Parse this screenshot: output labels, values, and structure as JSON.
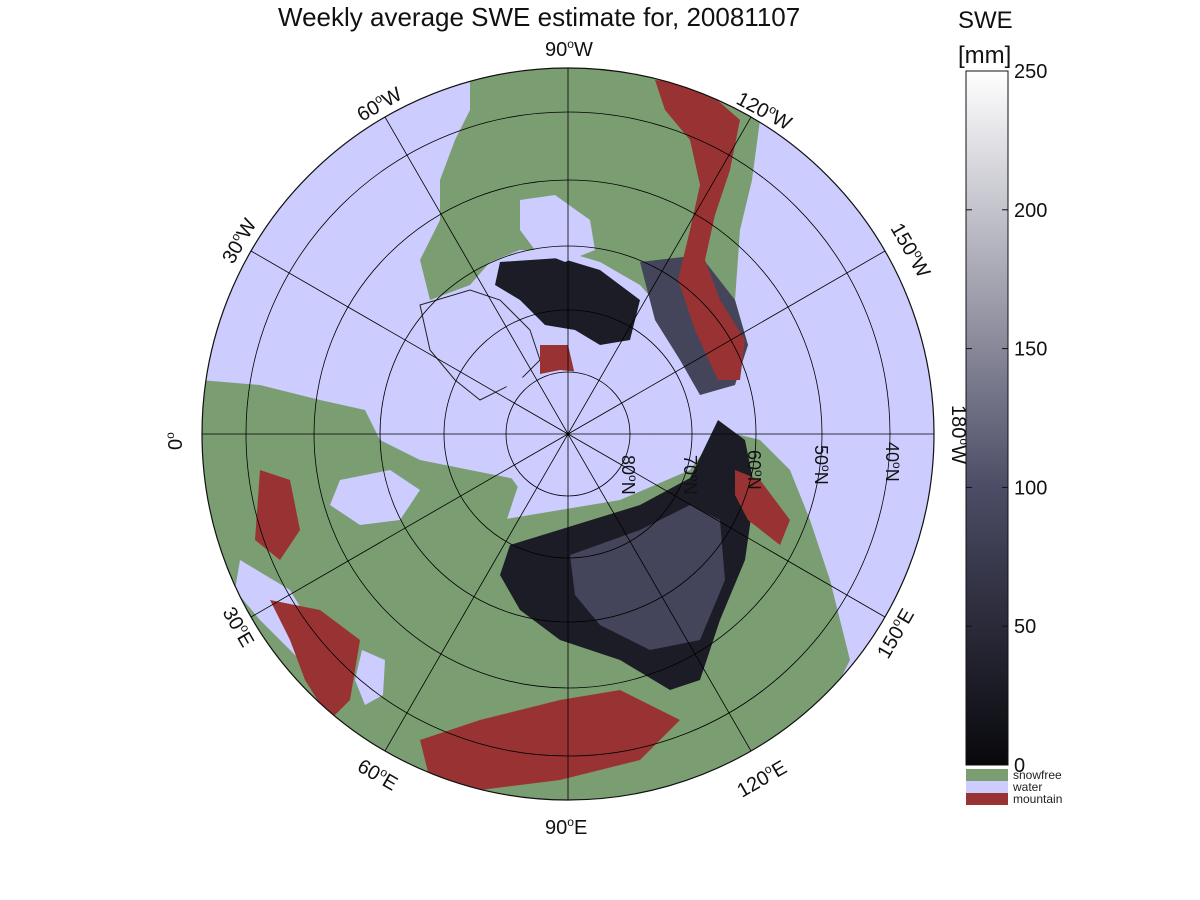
{
  "title": "Weekly average SWE estimate for, 20081107",
  "colorbar": {
    "label_line1": "SWE",
    "label_line2": "[mm]",
    "min": 0,
    "max": 250,
    "ticks": [
      0,
      50,
      100,
      150,
      200,
      250
    ],
    "tick_labels": [
      "0",
      "50",
      "100",
      "150",
      "200",
      "250"
    ],
    "color_low": "#08080c",
    "color_mid": "#4c4c66",
    "color_high": "#ffffff",
    "categories": [
      {
        "label": "snowfree",
        "color": "#7a9e72"
      },
      {
        "label": "water",
        "color": "#ccccff"
      },
      {
        "label": "mountain",
        "color": "#993333"
      }
    ]
  },
  "map": {
    "projection": "north polar stereographic",
    "longitude_labels": [
      {
        "deg": "90",
        "unit": "o",
        "hem": "W"
      },
      {
        "deg": "120",
        "unit": "o",
        "hem": "W"
      },
      {
        "deg": "150",
        "unit": "o",
        "hem": "W"
      },
      {
        "deg": "180",
        "unit": "o",
        "hem": "W"
      },
      {
        "deg": "150",
        "unit": "o",
        "hem": "E"
      },
      {
        "deg": "120",
        "unit": "o",
        "hem": "E"
      },
      {
        "deg": "90",
        "unit": "o",
        "hem": "E"
      },
      {
        "deg": "60",
        "unit": "o",
        "hem": "E"
      },
      {
        "deg": "30",
        "unit": "o",
        "hem": "E"
      },
      {
        "deg": "0",
        "unit": "o",
        "hem": ""
      },
      {
        "deg": "30",
        "unit": "o",
        "hem": "W"
      },
      {
        "deg": "60",
        "unit": "o",
        "hem": "W"
      }
    ],
    "latitude_labels": [
      {
        "deg": "80",
        "unit": "o",
        "hem": "N"
      },
      {
        "deg": "70",
        "unit": "o",
        "hem": "N"
      },
      {
        "deg": "60",
        "unit": "o",
        "hem": "N"
      },
      {
        "deg": "50",
        "unit": "o",
        "hem": "N"
      },
      {
        "deg": "40",
        "unit": "o",
        "hem": "N"
      }
    ],
    "colors": {
      "water": "#ccccff",
      "land_snowfree": "#7a9e72",
      "mountain": "#993333",
      "snow_low": "#1c1c26",
      "snow_mid": "#44445a",
      "ice_sheet": "#ccccff",
      "grid": "#000000"
    }
  }
}
